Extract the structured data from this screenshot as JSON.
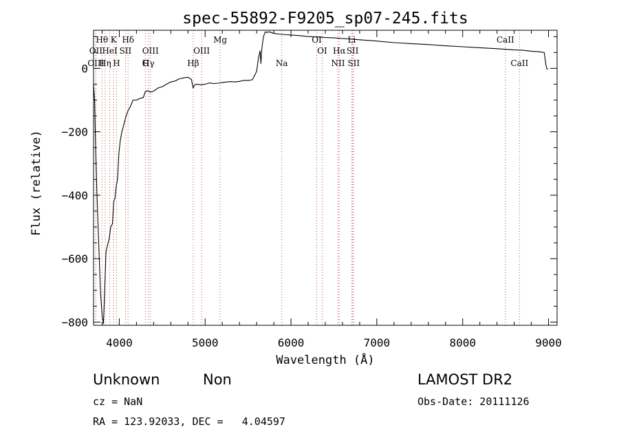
{
  "chart_data": {
    "type": "line",
    "title": "spec-55892-F9205_sp07-245.fits",
    "xlabel": "Wavelength (Å)",
    "ylabel": "Flux (relative)",
    "xlim": [
      3700,
      9100
    ],
    "ylim": [
      -810,
      120
    ],
    "x_ticks": [
      4000,
      5000,
      6000,
      7000,
      8000,
      9000
    ],
    "y_ticks": [
      0,
      -200,
      -400,
      -600,
      -800
    ],
    "grid": false,
    "series": [
      {
        "x": [
          3700,
          3712,
          3725,
          3740,
          3760,
          3780,
          3800,
          3815,
          3830,
          3845,
          3860,
          3880,
          3900,
          3920,
          3935,
          3950,
          3965,
          3980,
          3995,
          4010,
          4030,
          4050,
          4080,
          4100,
          4130,
          4160,
          4200,
          4240,
          4280,
          4300,
          4330,
          4360,
          4400,
          4450,
          4500,
          4550,
          4600,
          4650,
          4700,
          4750,
          4800,
          4840,
          4860,
          4880,
          4900,
          4950,
          5000,
          5050,
          5100,
          5150,
          5200,
          5250,
          5300,
          5350,
          5400,
          5450,
          5500,
          5550,
          5600,
          5620,
          5640,
          5650,
          5660,
          5680,
          5700,
          5720,
          5740,
          5760,
          5780,
          5800,
          5830,
          5860,
          5890,
          5920,
          5950,
          6000,
          6100,
          6200,
          6300,
          6400,
          6500,
          6600,
          6700,
          6800,
          6900,
          7000,
          7200,
          7400,
          7600,
          7800,
          8000,
          8200,
          8400,
          8500,
          8600,
          8700,
          8800,
          8900,
          8950,
          8960,
          8970,
          8980,
          8985,
          8990
        ],
        "y": [
          -50,
          -100,
          -250,
          -400,
          -550,
          -700,
          -780,
          -805,
          -700,
          -580,
          -560,
          -540,
          -500,
          -490,
          -420,
          -410,
          -370,
          -350,
          -270,
          -230,
          -200,
          -180,
          -150,
          -135,
          -120,
          -100,
          -100,
          -95,
          -92,
          -75,
          -70,
          -75,
          -72,
          -62,
          -58,
          -50,
          -43,
          -40,
          -33,
          -30,
          -28,
          -35,
          -62,
          -52,
          -50,
          -52,
          -50,
          -46,
          -48,
          -47,
          -45,
          -43,
          -42,
          -43,
          -41,
          -38,
          -38,
          -36,
          -10,
          30,
          55,
          15,
          60,
          100,
          115,
          113,
          115,
          114,
          112,
          110,
          109,
          108,
          107,
          107,
          106,
          105,
          103,
          100,
          99,
          97,
          96,
          94,
          92,
          90,
          88,
          86,
          81,
          78,
          75,
          71,
          68,
          65,
          62,
          60,
          58,
          57,
          54,
          52,
          50,
          30,
          10,
          0,
          -3,
          0
        ]
      }
    ],
    "spectral_lines": [
      {
        "name": "Hθ",
        "x": 3798,
        "row": 1
      },
      {
        "name": "K",
        "x": 3934,
        "row": 1
      },
      {
        "name": "Hδ",
        "x": 4102,
        "row": 1
      },
      {
        "name": "OIII",
        "x": 4363,
        "row": 2
      },
      {
        "name": "Mg",
        "x": 5175,
        "row": 1
      },
      {
        "name": "OI",
        "x": 6300,
        "row": 1
      },
      {
        "name": "Li",
        "x": 6708,
        "row": 1
      },
      {
        "name": "CaII",
        "x": 8498,
        "row": 1
      },
      {
        "name": "OII",
        "x": 3727,
        "row": 2
      },
      {
        "name": "HeI",
        "x": 3889,
        "row": 2
      },
      {
        "name": "SII",
        "x": 4072,
        "row": 2
      },
      {
        "name": "Hγ",
        "x": 4340,
        "row": 3
      },
      {
        "name": "OIII",
        "x": 4959,
        "row": 2
      },
      {
        "name": "OI",
        "x": 6364,
        "row": 2
      },
      {
        "name": "Hα",
        "x": 6563,
        "row": 2
      },
      {
        "name": "SII",
        "x": 6717,
        "row": 2
      },
      {
        "name": "OIII",
        "x": 3727,
        "row": 3
      },
      {
        "name": "Hη",
        "x": 3835,
        "row": 3
      },
      {
        "name": "H",
        "x": 3968,
        "row": 3
      },
      {
        "name": "G",
        "x": 4304,
        "row": 3
      },
      {
        "name": "Hβ",
        "x": 4861,
        "row": 3
      },
      {
        "name": "Na",
        "x": 5893,
        "row": 3
      },
      {
        "name": "NII",
        "x": 6548,
        "row": 3
      },
      {
        "name": "SII",
        "x": 6731,
        "row": 3
      },
      {
        "name": "CaII",
        "x": 8662,
        "row": 3
      }
    ]
  },
  "info": {
    "class_label": "Unknown",
    "subclass_label": "Non",
    "cz": "cz = NaN",
    "radec": "RA = 123.92033, DEC =   4.04597",
    "survey": "LAMOST DR2",
    "obs_date": "Obs-Date: 20111126"
  },
  "colors": {
    "line_marker": "#c84040",
    "spectrum": "#000000"
  }
}
